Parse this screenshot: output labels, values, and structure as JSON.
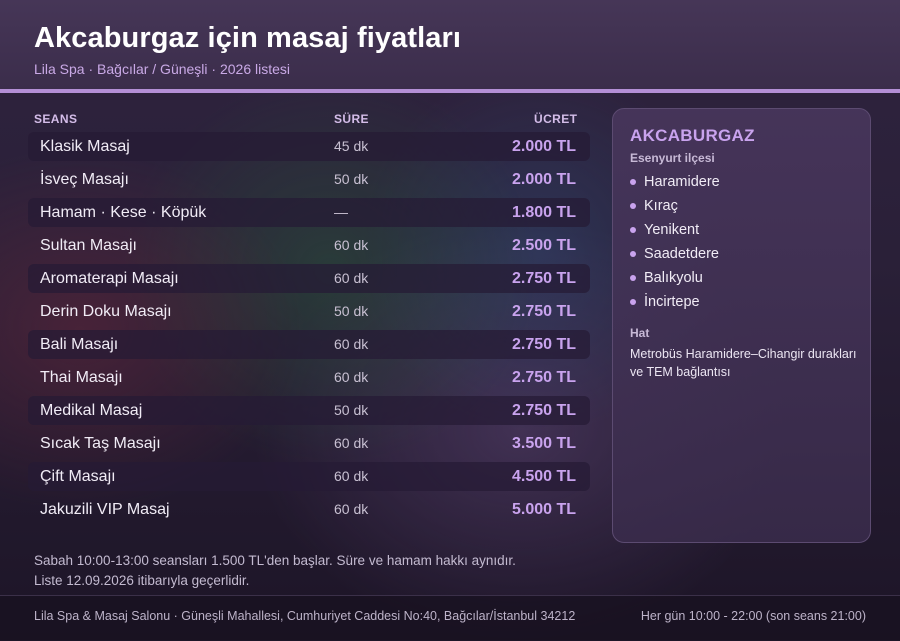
{
  "header": {
    "title": "Akcaburgaz için masaj fiyatları",
    "subtitle": "Lila Spa · Bağcılar / Güneşli · 2026 listesi"
  },
  "table": {
    "columns": {
      "session": "SEANS",
      "duration": "SÜRE",
      "price": "ÜCRET"
    },
    "rows": [
      {
        "name": "Klasik Masaj",
        "duration": "45 dk",
        "price": "2.000 TL"
      },
      {
        "name": "İsveç Masajı",
        "duration": "50 dk",
        "price": "2.000 TL"
      },
      {
        "name": "Hamam · Kese · Köpük",
        "duration": "—",
        "price": "1.800 TL"
      },
      {
        "name": "Sultan Masajı",
        "duration": "60 dk",
        "price": "2.500 TL"
      },
      {
        "name": "Aromaterapi Masajı",
        "duration": "60 dk",
        "price": "2.750 TL"
      },
      {
        "name": "Derin Doku Masajı",
        "duration": "50 dk",
        "price": "2.750 TL"
      },
      {
        "name": "Bali Masajı",
        "duration": "60 dk",
        "price": "2.750 TL"
      },
      {
        "name": "Thai Masajı",
        "duration": "60 dk",
        "price": "2.750 TL"
      },
      {
        "name": "Medikal Masaj",
        "duration": "50 dk",
        "price": "2.750 TL"
      },
      {
        "name": "Sıcak Taş Masajı",
        "duration": "60 dk",
        "price": "3.500 TL"
      },
      {
        "name": "Çift Masajı",
        "duration": "60 dk",
        "price": "4.500 TL"
      },
      {
        "name": "Jakuzili VIP Masaj",
        "duration": "60 dk",
        "price": "5.000 TL"
      }
    ]
  },
  "notes": [
    "Sabah 10:00-13:00 seansları 1.500 TL'den başlar. Süre ve hamam hakkı aynıdır.",
    "Liste 12.09.2026 itibarıyla geçerlidir."
  ],
  "panel": {
    "title": "AKCABURGAZ",
    "subtitle": "Esenyurt ilçesi",
    "neighborhoods": [
      "Haramidere",
      "Kıraç",
      "Yenikent",
      "Saadetdere",
      "Balıkyolu",
      "İncirtepe"
    ],
    "line_heading": "Hat",
    "line_text": "Metrobüs Haramidere–Cihangir durakları ve TEM bağlantısı"
  },
  "footer": {
    "address": "Lila Spa & Masaj Salonu · Güneşli Mahallesi, Cumhuriyet Caddesi No:40, Bağcılar/İstanbul 34212",
    "hours": "Her gün 10:00 - 22:00 (son seans 21:00)"
  },
  "colors": {
    "accent": "#b48fd6",
    "price": "#c9a3ee",
    "header_bg": "#3b2d4b",
    "page_bg": "#2a2038"
  }
}
